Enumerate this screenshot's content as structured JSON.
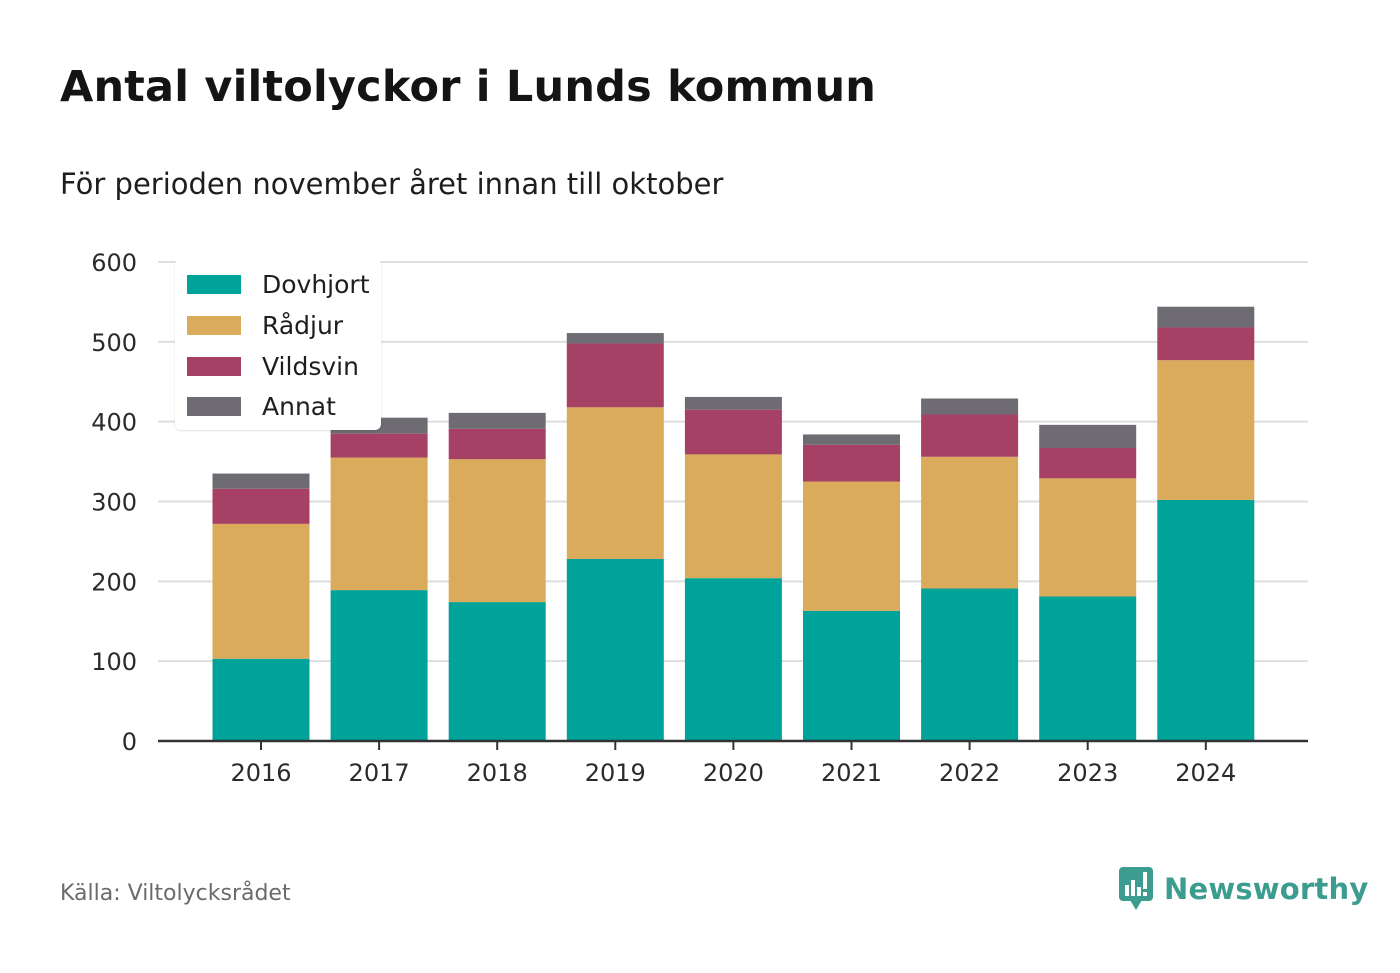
{
  "title": "Antal viltolyckor i Lunds kommun",
  "subtitle": "För perioden november året innan till oktober",
  "source": "Källa: Viltolycksrådet",
  "brand": "Newsworthy",
  "colors": {
    "Dovhjort": "#00a39a",
    "Rådjur": "#d9ab5a",
    "Vildsvin": "#a64064",
    "Annat": "#6e6c72",
    "grid": "#dedede",
    "axis": "#333333",
    "brand": "#3c9c8f"
  },
  "chart_data": {
    "type": "bar",
    "stacked": true,
    "categories": [
      "2016",
      "2017",
      "2018",
      "2019",
      "2020",
      "2021",
      "2022",
      "2023",
      "2024"
    ],
    "series": [
      {
        "name": "Dovhjort",
        "values": [
          103,
          189,
          174,
          228,
          204,
          163,
          191,
          181,
          302
        ]
      },
      {
        "name": "Rådjur",
        "values": [
          169,
          166,
          179,
          190,
          155,
          162,
          165,
          148,
          175
        ]
      },
      {
        "name": "Vildsvin",
        "values": [
          44,
          30,
          38,
          80,
          56,
          46,
          53,
          38,
          41
        ]
      },
      {
        "name": "Annat",
        "values": [
          19,
          20,
          20,
          13,
          16,
          13,
          20,
          29,
          26
        ]
      }
    ],
    "ylim": [
      0,
      600
    ],
    "yticks": [
      0,
      100,
      200,
      300,
      400,
      500,
      600
    ],
    "grid": true,
    "legend_position": "top-left"
  }
}
